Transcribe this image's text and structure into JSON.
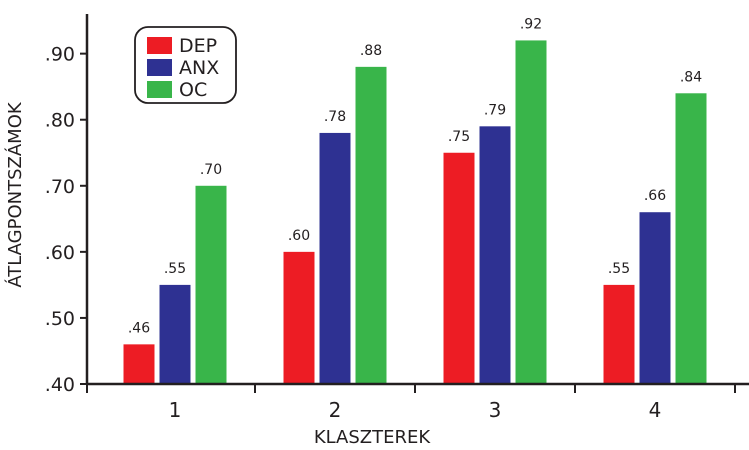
{
  "chart_data": {
    "type": "bar",
    "categories": [
      "1",
      "2",
      "3",
      "4"
    ],
    "series": [
      {
        "name": "DEP",
        "color": "#ed1c24",
        "values": [
          0.46,
          0.6,
          0.75,
          0.55
        ],
        "labels": [
          ".46",
          ".60",
          ".75",
          ".55"
        ]
      },
      {
        "name": "ANX",
        "color": "#2e3192",
        "values": [
          0.55,
          0.78,
          0.79,
          0.66
        ],
        "labels": [
          ".55",
          ".78",
          ".79",
          ".66"
        ]
      },
      {
        "name": "OC",
        "color": "#39b54a",
        "values": [
          0.7,
          0.88,
          0.92,
          0.84
        ],
        "labels": [
          ".70",
          ".88",
          ".92",
          ".84"
        ]
      }
    ],
    "xlabel": "KLASZTEREK",
    "ylabel": "ÁTLAGPONTSZÁMOK",
    "ylim": [
      0.4,
      0.96
    ],
    "yticks": [
      0.4,
      0.5,
      0.6,
      0.7,
      0.8,
      0.9
    ],
    "ytick_labels": [
      ".40",
      ".50",
      ".60",
      ".70",
      ".80",
      ".90"
    ],
    "grid": false,
    "legend_position": "top-left"
  }
}
